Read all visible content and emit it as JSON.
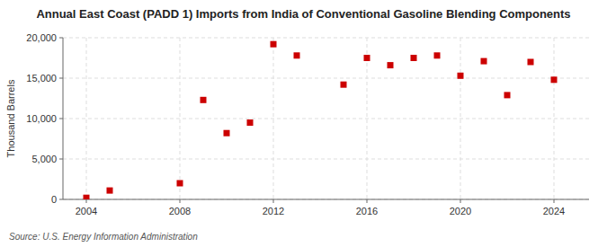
{
  "chart_data": {
    "type": "scatter",
    "title": "Annual East Coast (PADD 1) Imports from India of Conventional Gasoline Blending Components",
    "y_label": "Thousand Barrels",
    "source": "Source: U.S. Energy Information Administration",
    "x": [
      2004,
      2005,
      2008,
      2009,
      2010,
      2011,
      2012,
      2013,
      2015,
      2016,
      2017,
      2018,
      2019,
      2020,
      2021,
      2022,
      2023,
      2024
    ],
    "values": [
      200,
      1100,
      2000,
      12300,
      8200,
      9500,
      19200,
      17800,
      14200,
      17500,
      16600,
      17500,
      17800,
      15300,
      17100,
      12900,
      17000,
      14800
    ],
    "color": "#cc0000",
    "marker": "square",
    "grid": true,
    "xlim": [
      2003.0,
      2025.5
    ],
    "xticks": [
      2004,
      2008,
      2012,
      2016,
      2020,
      2024
    ],
    "ylim": [
      0,
      20000
    ],
    "yticks": [
      0,
      {
        "value": 5000,
        "label": "5,000"
      },
      {
        "value": 10000,
        "label": "10,000"
      },
      {
        "value": 15000,
        "label": "15,000"
      },
      {
        "value": 20000,
        "label": "20,000"
      }
    ]
  }
}
